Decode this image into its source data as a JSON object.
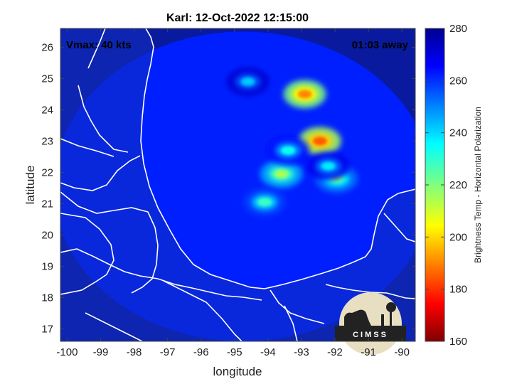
{
  "chart_data": {
    "type": "heatmap",
    "title": "Karl: 12-Oct-2022 12:15:00",
    "xlabel": "longitude",
    "ylabel": "latitude",
    "xlim": [
      -100.2,
      -89.6
    ],
    "ylim": [
      16.6,
      26.6
    ],
    "x_ticks": [
      -100,
      -99,
      -98,
      -97,
      -96,
      -95,
      -94,
      -93,
      -92,
      -91,
      -90
    ],
    "y_ticks": [
      17,
      18,
      19,
      20,
      21,
      22,
      23,
      24,
      25,
      26
    ],
    "colorbar": {
      "label": "Brightness Temp - Horizontal Polarization",
      "range": [
        160,
        280
      ],
      "ticks": [
        160,
        180,
        200,
        220,
        240,
        260,
        280
      ]
    },
    "annotations": {
      "vmax": "Vmax: 40 kts",
      "time_away": "01:03 away"
    },
    "swath": {
      "center_lon": -94.75,
      "center_lat": 21.55,
      "radius_lon": 5.65,
      "radius_lat": 4.95,
      "background_temp": 262
    },
    "cold_features": [
      {
        "lon": -92.9,
        "lat": 24.5,
        "temp": 190
      },
      {
        "lon": -92.45,
        "lat": 23.0,
        "temp": 185
      },
      {
        "lon": -93.6,
        "lat": 21.95,
        "temp": 215
      },
      {
        "lon": -91.95,
        "lat": 21.8,
        "temp": 222
      },
      {
        "lon": -94.1,
        "lat": 21.05,
        "temp": 228
      },
      {
        "lon": -93.4,
        "lat": 22.7,
        "temp": 234
      },
      {
        "lon": -92.2,
        "lat": 22.2,
        "temp": 238
      },
      {
        "lon": -94.6,
        "lat": 24.9,
        "temp": 242
      }
    ],
    "grid": false,
    "legend": "colorbar-right"
  },
  "logo": {
    "text": "CIMSS"
  }
}
